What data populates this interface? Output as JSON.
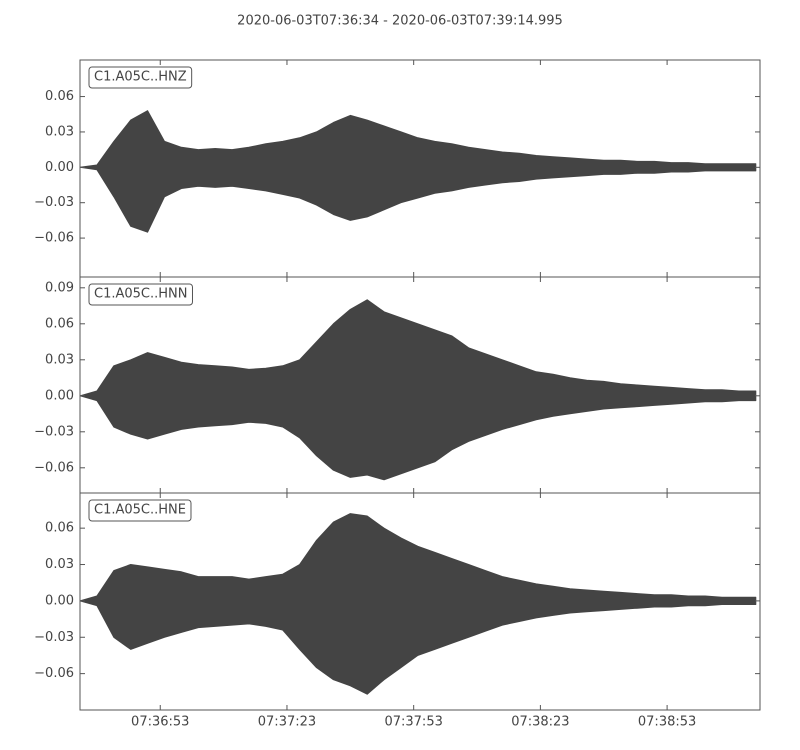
{
  "title": "2020-06-03T07:36:34  -  2020-06-03T07:39:14.995",
  "chart_data": [
    {
      "type": "envelope",
      "label": "C1.A05C..HNZ",
      "color": "#444444",
      "xlim": [
        "07:36:34",
        "07:39:14.995"
      ],
      "xticks": [
        "07:36:53",
        "07:37:23",
        "07:37:53",
        "07:38:23",
        "07:38:53"
      ],
      "ylim": [
        -0.093,
        0.091
      ],
      "yticks": [
        {
          "value": -0.06,
          "label": "−0.06"
        },
        {
          "value": -0.03,
          "label": "−0.03"
        },
        {
          "value": 0,
          "label": "0.00"
        },
        0.03,
        0.06
      ],
      "x": [
        "07:36:34",
        "07:36:38",
        "07:36:42",
        "07:36:46",
        "07:36:50",
        "07:36:54",
        "07:36:58",
        "07:37:02",
        "07:37:06",
        "07:37:10",
        "07:37:14",
        "07:37:18",
        "07:37:22",
        "07:37:26",
        "07:37:30",
        "07:37:34",
        "07:37:38",
        "07:37:42",
        "07:37:46",
        "07:37:50",
        "07:37:54",
        "07:37:58",
        "07:38:02",
        "07:38:06",
        "07:38:10",
        "07:38:14",
        "07:38:18",
        "07:38:22",
        "07:38:26",
        "07:38:30",
        "07:38:34",
        "07:38:38",
        "07:38:42",
        "07:38:46",
        "07:38:50",
        "07:38:54",
        "07:38:58",
        "07:39:02",
        "07:39:06",
        "07:39:10",
        "07:39:14"
      ],
      "values": [
        0,
        0.002,
        0.022,
        0.04,
        0.048,
        0.022,
        0.017,
        0.015,
        0.016,
        0.015,
        0.017,
        0.02,
        0.022,
        0.025,
        0.03,
        0.038,
        0.044,
        0.04,
        0.035,
        0.03,
        0.025,
        0.022,
        0.02,
        0.017,
        0.015,
        0.013,
        0.012,
        0.01,
        0.009,
        0.008,
        0.007,
        0.006,
        0.006,
        0.005,
        0.005,
        0.004,
        0.004,
        0.003,
        0.003,
        0.003,
        0.003
      ],
      "min_values": [
        0,
        -0.002,
        -0.025,
        -0.05,
        -0.055,
        -0.025,
        -0.018,
        -0.016,
        -0.017,
        -0.016,
        -0.018,
        -0.02,
        -0.023,
        -0.026,
        -0.032,
        -0.04,
        -0.045,
        -0.042,
        -0.036,
        -0.03,
        -0.026,
        -0.022,
        -0.02,
        -0.017,
        -0.015,
        -0.013,
        -0.012,
        -0.01,
        -0.009,
        -0.008,
        -0.007,
        -0.006,
        -0.006,
        -0.005,
        -0.005,
        -0.004,
        -0.004,
        -0.003,
        -0.003,
        -0.003,
        -0.003
      ]
    },
    {
      "type": "envelope",
      "label": "C1.A05C..HNN",
      "color": "#444444",
      "xlim": [
        "07:36:34",
        "07:39:14.995"
      ],
      "xticks": [
        "07:36:53",
        "07:37:23",
        "07:37:53",
        "07:38:23",
        "07:38:53"
      ],
      "ylim": [
        -0.081,
        0.099
      ],
      "yticks": [
        {
          "value": -0.06,
          "label": "−0.06"
        },
        {
          "value": -0.03,
          "label": "−0.03"
        },
        {
          "value": 0,
          "label": "0.00"
        },
        0.03,
        0.06,
        0.09
      ],
      "x": [
        "07:36:34",
        "07:36:38",
        "07:36:42",
        "07:36:46",
        "07:36:50",
        "07:36:54",
        "07:36:58",
        "07:37:02",
        "07:37:06",
        "07:37:10",
        "07:37:14",
        "07:37:18",
        "07:37:22",
        "07:37:26",
        "07:37:30",
        "07:37:34",
        "07:37:38",
        "07:37:42",
        "07:37:46",
        "07:37:50",
        "07:37:54",
        "07:37:58",
        "07:38:02",
        "07:38:06",
        "07:38:10",
        "07:38:14",
        "07:38:18",
        "07:38:22",
        "07:38:26",
        "07:38:30",
        "07:38:34",
        "07:38:38",
        "07:38:42",
        "07:38:46",
        "07:38:50",
        "07:38:54",
        "07:38:58",
        "07:39:02",
        "07:39:06",
        "07:39:10",
        "07:39:14"
      ],
      "values": [
        0,
        0.004,
        0.025,
        0.03,
        0.036,
        0.032,
        0.028,
        0.026,
        0.025,
        0.024,
        0.022,
        0.023,
        0.025,
        0.03,
        0.045,
        0.06,
        0.072,
        0.08,
        0.07,
        0.065,
        0.06,
        0.055,
        0.05,
        0.04,
        0.035,
        0.03,
        0.025,
        0.02,
        0.018,
        0.015,
        0.013,
        0.012,
        0.01,
        0.009,
        0.008,
        0.007,
        0.006,
        0.005,
        0.005,
        0.004,
        0.004
      ],
      "min_values": [
        0,
        -0.004,
        -0.026,
        -0.032,
        -0.036,
        -0.032,
        -0.028,
        -0.026,
        -0.025,
        -0.024,
        -0.022,
        -0.023,
        -0.026,
        -0.035,
        -0.05,
        -0.062,
        -0.068,
        -0.066,
        -0.07,
        -0.065,
        -0.06,
        -0.055,
        -0.045,
        -0.038,
        -0.033,
        -0.028,
        -0.024,
        -0.02,
        -0.017,
        -0.015,
        -0.013,
        -0.011,
        -0.01,
        -0.009,
        -0.008,
        -0.007,
        -0.006,
        -0.005,
        -0.005,
        -0.004,
        -0.004
      ]
    },
    {
      "type": "envelope",
      "label": "C1.A05C..HNE",
      "color": "#444444",
      "xlim": [
        "07:36:34",
        "07:39:14.995"
      ],
      "xticks": [
        "07:36:53",
        "07:37:23",
        "07:37:53",
        "07:38:23",
        "07:38:53"
      ],
      "ylim": [
        -0.09,
        0.089
      ],
      "yticks": [
        {
          "value": -0.06,
          "label": "−0.06"
        },
        {
          "value": -0.03,
          "label": "−0.03"
        },
        {
          "value": 0,
          "label": "0.00"
        },
        0.03,
        0.06
      ],
      "x": [
        "07:36:34",
        "07:36:38",
        "07:36:42",
        "07:36:46",
        "07:36:50",
        "07:36:54",
        "07:36:58",
        "07:37:02",
        "07:37:06",
        "07:37:10",
        "07:37:14",
        "07:37:18",
        "07:37:22",
        "07:37:26",
        "07:37:30",
        "07:37:34",
        "07:37:38",
        "07:37:42",
        "07:37:46",
        "07:37:50",
        "07:37:54",
        "07:37:58",
        "07:38:02",
        "07:38:06",
        "07:38:10",
        "07:38:14",
        "07:38:18",
        "07:38:22",
        "07:38:26",
        "07:38:30",
        "07:38:34",
        "07:38:38",
        "07:38:42",
        "07:38:46",
        "07:38:50",
        "07:38:54",
        "07:38:58",
        "07:39:02",
        "07:39:06",
        "07:39:10",
        "07:39:14"
      ],
      "values": [
        0,
        0.004,
        0.025,
        0.03,
        0.028,
        0.026,
        0.024,
        0.02,
        0.02,
        0.02,
        0.018,
        0.02,
        0.022,
        0.03,
        0.05,
        0.065,
        0.072,
        0.07,
        0.06,
        0.052,
        0.045,
        0.04,
        0.035,
        0.03,
        0.025,
        0.02,
        0.017,
        0.014,
        0.012,
        0.01,
        0.009,
        0.008,
        0.007,
        0.006,
        0.005,
        0.005,
        0.004,
        0.004,
        0.003,
        0.003,
        0.003
      ],
      "min_values": [
        0,
        -0.004,
        -0.03,
        -0.04,
        -0.035,
        -0.03,
        -0.026,
        -0.022,
        -0.021,
        -0.02,
        -0.019,
        -0.021,
        -0.024,
        -0.04,
        -0.055,
        -0.065,
        -0.07,
        -0.077,
        -0.065,
        -0.055,
        -0.045,
        -0.04,
        -0.035,
        -0.03,
        -0.025,
        -0.02,
        -0.017,
        -0.014,
        -0.012,
        -0.01,
        -0.009,
        -0.008,
        -0.007,
        -0.006,
        -0.005,
        -0.005,
        -0.004,
        -0.004,
        -0.003,
        -0.003,
        -0.003
      ]
    }
  ]
}
